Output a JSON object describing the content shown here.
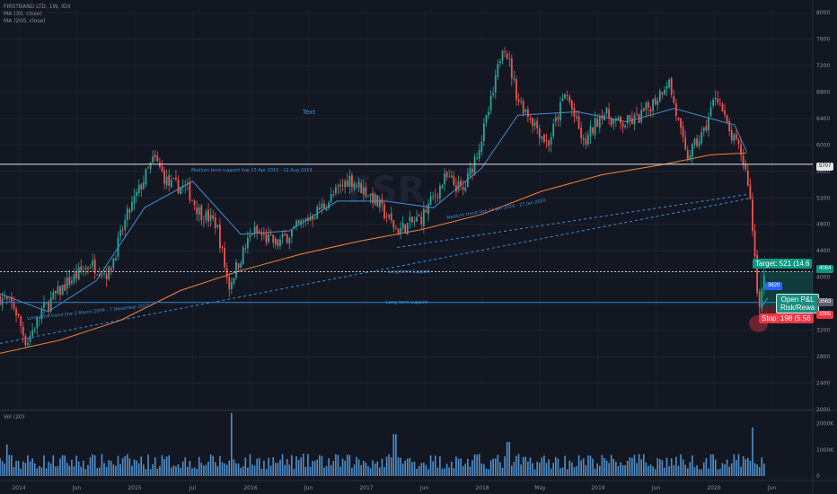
{
  "legend": {
    "line1": "FIRSTBAND LTD, 1W, IDX",
    "line2": "MA (30, close)",
    "line3": "MA (200, close)"
  },
  "chart_data": {
    "type": "candlestick",
    "ylim": [
      2000,
      8000
    ],
    "y_ticks": [
      "8000",
      "7600",
      "7200",
      "6800",
      "6400",
      "6000",
      "5600",
      "5200",
      "4800",
      "4400",
      "4000",
      "3600",
      "3200",
      "2800",
      "2400",
      "2000"
    ],
    "x_ticks": [
      "2014",
      "Jun",
      "2015",
      "Jul",
      "2016",
      "Jun",
      "2017",
      "Jun",
      "2018",
      "May",
      "2019",
      "Jun",
      "2020",
      "Jun"
    ],
    "x_range": [
      2014.0,
      2020.75
    ],
    "volume_ticks": [
      "2000K",
      "1000K",
      "0"
    ],
    "volume_max": 2400,
    "price_waypoints": [
      [
        2014.0,
        3700
      ],
      [
        2014.12,
        3550
      ],
      [
        2014.22,
        3000
      ],
      [
        2014.35,
        3500
      ],
      [
        2014.55,
        3900
      ],
      [
        2014.75,
        4200
      ],
      [
        2014.9,
        4050
      ],
      [
        2015.05,
        4900
      ],
      [
        2015.2,
        5500
      ],
      [
        2015.28,
        5800
      ],
      [
        2015.4,
        5400
      ],
      [
        2015.55,
        5350
      ],
      [
        2015.65,
        5000
      ],
      [
        2015.8,
        4800
      ],
      [
        2015.9,
        3850
      ],
      [
        2015.95,
        4100
      ],
      [
        2016.1,
        4700
      ],
      [
        2016.3,
        4500
      ],
      [
        2016.5,
        4800
      ],
      [
        2016.7,
        5100
      ],
      [
        2016.9,
        5500
      ],
      [
        2017.1,
        5200
      ],
      [
        2017.3,
        4700
      ],
      [
        2017.5,
        4900
      ],
      [
        2017.7,
        5500
      ],
      [
        2017.85,
        5300
      ],
      [
        2018.0,
        6100
      ],
      [
        2018.1,
        6800
      ],
      [
        2018.18,
        7600
      ],
      [
        2018.3,
        6700
      ],
      [
        2018.45,
        6300
      ],
      [
        2018.55,
        6000
      ],
      [
        2018.7,
        6800
      ],
      [
        2018.85,
        6000
      ],
      [
        2019.0,
        6500
      ],
      [
        2019.15,
        6300
      ],
      [
        2019.3,
        6400
      ],
      [
        2019.45,
        6700
      ],
      [
        2019.55,
        7000
      ],
      [
        2019.7,
        5800
      ],
      [
        2019.85,
        6200
      ],
      [
        2019.95,
        6800
      ],
      [
        2020.05,
        6200
      ],
      [
        2020.15,
        5900
      ],
      [
        2020.22,
        5400
      ],
      [
        2020.27,
        4300
      ],
      [
        2020.3,
        3563
      ],
      [
        2020.36,
        4084
      ]
    ],
    "volume_spikes": [
      [
        2015.92,
        2400
      ],
      [
        2017.28,
        1600
      ],
      [
        2020.25,
        1850
      ],
      [
        2014.06,
        1200
      ],
      [
        2018.22,
        1300
      ]
    ],
    "ma30": [
      [
        2014.0,
        3750
      ],
      [
        2014.4,
        3480
      ],
      [
        2014.8,
        3950
      ],
      [
        2015.2,
        5050
      ],
      [
        2015.6,
        5450
      ],
      [
        2016.0,
        4650
      ],
      [
        2016.4,
        4700
      ],
      [
        2016.8,
        5150
      ],
      [
        2017.2,
        5150
      ],
      [
        2017.6,
        5050
      ],
      [
        2018.0,
        5650
      ],
      [
        2018.3,
        6450
      ],
      [
        2018.8,
        6500
      ],
      [
        2019.2,
        6350
      ],
      [
        2019.6,
        6550
      ],
      [
        2019.9,
        6400
      ],
      [
        2020.1,
        6300
      ],
      [
        2020.2,
        5900
      ]
    ],
    "ma200": [
      [
        2014.0,
        2850
      ],
      [
        2014.5,
        3050
      ],
      [
        2015.0,
        3350
      ],
      [
        2015.5,
        3800
      ],
      [
        2016.0,
        4100
      ],
      [
        2016.5,
        4350
      ],
      [
        2017.0,
        4550
      ],
      [
        2017.5,
        4720
      ],
      [
        2018.0,
        4950
      ],
      [
        2018.5,
        5300
      ],
      [
        2019.0,
        5550
      ],
      [
        2019.5,
        5700
      ],
      [
        2019.9,
        5850
      ],
      [
        2020.2,
        5880
      ]
    ],
    "levels": {
      "resistance": 5707,
      "target": 4084,
      "long_term_support": 3620
    },
    "lines": {
      "long_term_trend": [
        [
          2014.0,
          3000
        ],
        [
          2020.25,
          5200
        ]
      ],
      "medium_trend": [
        [
          2017.3,
          4450
        ],
        [
          2020.2,
          5250
        ]
      ],
      "medium_support_seg": [
        [
          2015.3,
          5707
        ],
        [
          2016.0,
          5707
        ]
      ]
    },
    "annotations": {
      "text_label": "Text",
      "medium_support": "Medium term support line 13 Apr 2015 - 12 Aug 2019",
      "long_term_support_upper": "Long term Support",
      "long_term_support_lower": "Long term support",
      "long_trend": "Long term trend line  2 March 2009 -  7 December 2015",
      "medium_trend": "Medium trend line 11 Jan 2016 - 27 Jan 2020"
    },
    "price_labels": {
      "p5707": "5707",
      "p4084": "4084",
      "p3620": "3620",
      "p3563": "3563",
      "p3365": "3365"
    },
    "position": {
      "target": "Target: 521 (14.6",
      "stop": "Stop: 198 (5.56",
      "open_pl_1": "Open P&L",
      "open_pl_2": "Risk/Rewa"
    },
    "watermark": "FSR",
    "colors": {
      "up": "#26a69a",
      "down": "#ef5350",
      "ma30": "#3d8fd6",
      "ma200": "#f5813b",
      "vol": "#5ea6e8",
      "resistance": "#e6e6e6",
      "support": "#2e7ec4",
      "target": "#089981",
      "stop": "#f23645"
    }
  }
}
